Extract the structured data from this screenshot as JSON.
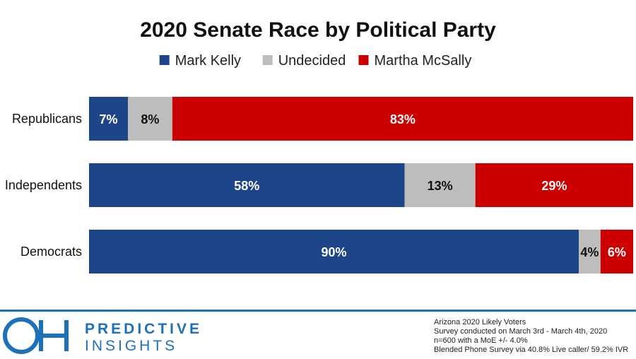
{
  "chart_data": {
    "type": "bar",
    "orientation": "horizontal",
    "stacked": true,
    "title": "2020 Senate Race by Political Party",
    "categories": [
      "Republicans",
      "Independents",
      "Democrats"
    ],
    "series": [
      {
        "name": "Mark Kelly",
        "color": "#1f4589",
        "label_color": "#ffffff",
        "values": [
          7,
          58,
          90
        ],
        "labels": [
          "7%",
          "58%",
          "90%"
        ]
      },
      {
        "name": "Undecided",
        "color": "#bdbdbd",
        "label_color": "#111111",
        "values": [
          8,
          13,
          4
        ],
        "labels": [
          "8%",
          "13%",
          "4%"
        ]
      },
      {
        "name": "Martha McSally",
        "color": "#cc0000",
        "label_color": "#ffffff",
        "values": [
          83,
          29,
          6
        ],
        "labels": [
          "83%",
          "29%",
          "6%"
        ]
      }
    ],
    "legend_position": "top-center",
    "grid": false
  },
  "footer": {
    "brand_line1": "PREDICTIVE",
    "brand_line2": "INSIGHTS",
    "logo_glyph": "OH",
    "brand_color": "#1d71b8",
    "notes": [
      "Arizona 2020 Likely Voters",
      "Survey conducted on March 3rd - March 4th, 2020",
      "n=600 with a MoE +/- 4.0%",
      "Blended Phone Survey via 40.8% Live caller/ 59.2% IVR"
    ]
  }
}
